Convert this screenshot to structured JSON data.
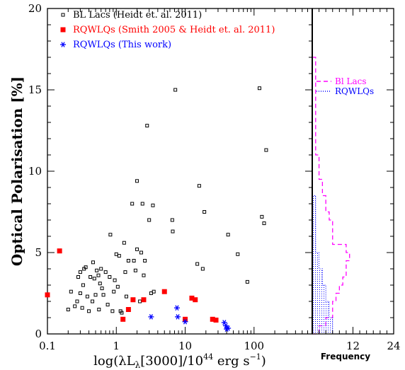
{
  "chart_data": [
    {
      "type": "scatter",
      "title": "",
      "xlabel": "log(λL",
      "xlabel_sub": "λ",
      "xlabel_tail": "[3000]/10",
      "xlabel_sup": "44",
      "xlabel_end": " erg s",
      "xlabel_sup2": "−1",
      "xlabel_close": ")",
      "ylabel": "Optical Polarisation [%]",
      "xscale": "log",
      "xlim": [
        0.1,
        700
      ],
      "ylim": [
        0,
        20
      ],
      "x_ticks": [
        0.1,
        1,
        10,
        100
      ],
      "x_tick_labels": [
        "0.1",
        "1",
        "10",
        "100"
      ],
      "y_ticks": [
        0,
        5,
        10,
        15,
        20
      ],
      "y_tick_labels": [
        "0",
        "5",
        "10",
        "15",
        "20"
      ],
      "legend_position": "top-left",
      "series": [
        {
          "name": "BL Lacs (Heidt et. al. 2011)",
          "marker": "open-square",
          "color": "#000000",
          "points": [
            [
              0.2,
              1.5
            ],
            [
              0.22,
              2.6
            ],
            [
              0.25,
              1.7
            ],
            [
              0.27,
              2.0
            ],
            [
              0.28,
              3.5
            ],
            [
              0.3,
              2.5
            ],
            [
              0.3,
              3.8
            ],
            [
              0.32,
              1.6
            ],
            [
              0.33,
              3.0
            ],
            [
              0.34,
              4.0
            ],
            [
              0.36,
              4.1
            ],
            [
              0.38,
              2.3
            ],
            [
              0.4,
              1.4
            ],
            [
              0.42,
              3.5
            ],
            [
              0.45,
              2.0
            ],
            [
              0.46,
              4.4
            ],
            [
              0.48,
              3.4
            ],
            [
              0.5,
              2.4
            ],
            [
              0.52,
              3.9
            ],
            [
              0.55,
              3.6
            ],
            [
              0.56,
              1.5
            ],
            [
              0.58,
              3.1
            ],
            [
              0.6,
              4.0
            ],
            [
              0.62,
              2.8
            ],
            [
              0.65,
              2.4
            ],
            [
              0.7,
              3.8
            ],
            [
              0.75,
              1.8
            ],
            [
              0.8,
              3.5
            ],
            [
              0.82,
              6.1
            ],
            [
              0.88,
              1.4
            ],
            [
              0.92,
              2.6
            ],
            [
              0.95,
              3.3
            ],
            [
              1.0,
              4.9
            ],
            [
              1.05,
              2.9
            ],
            [
              1.1,
              4.8
            ],
            [
              1.15,
              1.4
            ],
            [
              1.2,
              1.3
            ],
            [
              1.3,
              5.6
            ],
            [
              1.35,
              3.8
            ],
            [
              1.4,
              2.3
            ],
            [
              1.5,
              4.5
            ],
            [
              1.7,
              8.0
            ],
            [
              1.8,
              4.5
            ],
            [
              1.9,
              3.9
            ],
            [
              2.0,
              5.2
            ],
            [
              2.0,
              9.4
            ],
            [
              2.2,
              2.0
            ],
            [
              2.3,
              5.0
            ],
            [
              2.4,
              8.0
            ],
            [
              2.5,
              3.6
            ],
            [
              2.6,
              4.5
            ],
            [
              2.8,
              12.8
            ],
            [
              3.0,
              7.0
            ],
            [
              3.2,
              2.5
            ],
            [
              3.4,
              7.9
            ],
            [
              3.5,
              2.6
            ],
            [
              6.5,
              7.0
            ],
            [
              6.6,
              6.3
            ],
            [
              7.2,
              15.0
            ],
            [
              15.0,
              4.3
            ],
            [
              16.0,
              9.1
            ],
            [
              18.0,
              4.0
            ],
            [
              19.0,
              7.5
            ],
            [
              42.0,
              6.1
            ],
            [
              58.0,
              4.9
            ],
            [
              80.0,
              3.2
            ],
            [
              120.0,
              15.1
            ],
            [
              130.0,
              7.2
            ],
            [
              140.0,
              6.8
            ],
            [
              150.0,
              11.3
            ]
          ]
        },
        {
          "name": "RQWLQs (Smith 2005 & Heidt et. al. 2011)",
          "marker": "filled-square",
          "color": "#ff0000",
          "points": [
            [
              0.1,
              2.4
            ],
            [
              0.15,
              5.1
            ],
            [
              1.25,
              0.9
            ],
            [
              1.5,
              1.5
            ],
            [
              1.75,
              2.1
            ],
            [
              2.5,
              2.1
            ],
            [
              5.0,
              2.6
            ],
            [
              10.0,
              0.9
            ],
            [
              12.5,
              2.2
            ],
            [
              14.0,
              2.1
            ],
            [
              25.0,
              0.9
            ],
            [
              28.0,
              0.85
            ]
          ]
        },
        {
          "name": "RQWLQs (This work)",
          "marker": "asterisk",
          "color": "#0000ff",
          "points": [
            [
              3.2,
              1.05
            ],
            [
              7.6,
              1.6
            ],
            [
              7.8,
              1.05
            ],
            [
              10.0,
              0.75
            ],
            [
              37.0,
              0.7
            ],
            [
              39.0,
              0.5
            ],
            [
              40.0,
              0.3
            ],
            [
              42.0,
              0.35
            ]
          ]
        }
      ]
    },
    {
      "type": "histogram",
      "xlabel": "Frequency",
      "orientation": "horizontal",
      "xlim": [
        0,
        24
      ],
      "ylim": [
        0,
        20
      ],
      "x_ticks": [
        0,
        12,
        24
      ],
      "x_tick_labels": [
        "",
        "12",
        "24"
      ],
      "bin_width": 0.5,
      "legend_position": "top-right",
      "series": [
        {
          "name": "Bl Lacs",
          "style": "dashed",
          "color": "#ff00ff",
          "counts": [
            2,
            4,
            6,
            6,
            7,
            8,
            9,
            10,
            10,
            11,
            10,
            6,
            6,
            6,
            5,
            4,
            4,
            3,
            3,
            2,
            2,
            2,
            1,
            1,
            1,
            1,
            1,
            1,
            1,
            1,
            1,
            1,
            1,
            1
          ]
        },
        {
          "name": "RQWLQs",
          "style": "dotted-fill",
          "color": "#0000ff",
          "counts": [
            6,
            6,
            5,
            5,
            4,
            4,
            3,
            3,
            2,
            2,
            1,
            1,
            1,
            1,
            1,
            1,
            1
          ]
        }
      ]
    }
  ]
}
